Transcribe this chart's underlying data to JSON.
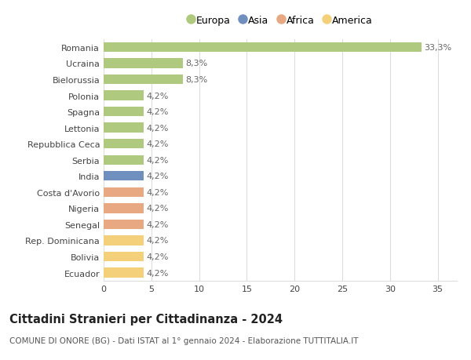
{
  "countries": [
    "Romania",
    "Ucraina",
    "Bielorussia",
    "Polonia",
    "Spagna",
    "Lettonia",
    "Repubblica Ceca",
    "Serbia",
    "India",
    "Costa d'Avorio",
    "Nigeria",
    "Senegal",
    "Rep. Dominicana",
    "Bolivia",
    "Ecuador"
  ],
  "values": [
    33.3,
    8.3,
    8.3,
    4.2,
    4.2,
    4.2,
    4.2,
    4.2,
    4.2,
    4.2,
    4.2,
    4.2,
    4.2,
    4.2,
    4.2
  ],
  "labels": [
    "33,3%",
    "8,3%",
    "8,3%",
    "4,2%",
    "4,2%",
    "4,2%",
    "4,2%",
    "4,2%",
    "4,2%",
    "4,2%",
    "4,2%",
    "4,2%",
    "4,2%",
    "4,2%",
    "4,2%"
  ],
  "colors": [
    "#afc97e",
    "#afc97e",
    "#afc97e",
    "#afc97e",
    "#afc97e",
    "#afc97e",
    "#afc97e",
    "#afc97e",
    "#6f8fbf",
    "#e8a882",
    "#e8a882",
    "#e8a882",
    "#f5d07a",
    "#f5d07a",
    "#f5d07a"
  ],
  "legend": [
    {
      "label": "Europa",
      "color": "#afc97e"
    },
    {
      "label": "Asia",
      "color": "#6f8fbf"
    },
    {
      "label": "Africa",
      "color": "#e8a882"
    },
    {
      "label": "America",
      "color": "#f5d07a"
    }
  ],
  "xlim": [
    0,
    37
  ],
  "xticks": [
    0,
    5,
    10,
    15,
    20,
    25,
    30,
    35
  ],
  "title": "Cittadini Stranieri per Cittadinanza - 2024",
  "subtitle": "COMUNE DI ONORE (BG) - Dati ISTAT al 1° gennaio 2024 - Elaborazione TUTTITALIA.IT",
  "bg_color": "#ffffff",
  "grid_color": "#dddddd",
  "bar_height": 0.6,
  "label_fontsize": 8,
  "tick_fontsize": 8,
  "title_fontsize": 10.5,
  "subtitle_fontsize": 7.5,
  "legend_fontsize": 9
}
